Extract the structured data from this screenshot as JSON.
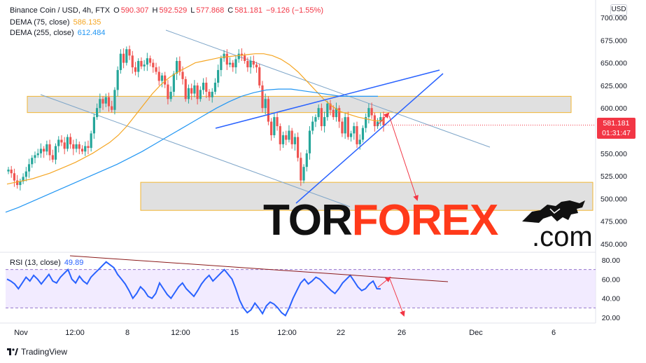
{
  "legend": {
    "symbol": "Binance Coin / USD, 4h, FTX",
    "open_label": "O",
    "open": "590.307",
    "high_label": "H",
    "high": "592.529",
    "low_label": "L",
    "low": "577.868",
    "close_label": "C",
    "close": "581.181",
    "change": "−9.126 (−1.55%)",
    "dema75_label": "DEMA (75, close)",
    "dema75_value": "586.135",
    "dema255_label": "DEMA (255, close)",
    "dema255_value": "612.484",
    "rsi_label": "RSI (13, close)",
    "rsi_value": "49.89"
  },
  "currency": "USD",
  "price_tag": {
    "price": "581.181",
    "countdown": "01:31:47"
  },
  "branding": {
    "tv": "TradingView",
    "wm_part1": "TOR",
    "wm_part2": "FOREX",
    "wm_dot": ".com"
  },
  "colors": {
    "up": "#26a69a",
    "down": "#ef5350",
    "dema75": "#f5a623",
    "dema255": "#2196f3",
    "rsi": "#2962ff",
    "trend": "#2962ff",
    "arrow": "#f23645",
    "text_down": "#f23645",
    "text_up": "#089981"
  },
  "chart_data": [
    {
      "type": "candlestick",
      "title": "Binance Coin / USD, 4h, FTX",
      "ylabel": "USD",
      "ylim": [
        437,
        706
      ],
      "y_ticks": [
        450,
        475,
        500,
        525,
        550,
        575,
        600,
        625,
        650,
        675,
        700
      ],
      "x_ticks": [
        "Nov",
        "12:00",
        "8",
        "12:00",
        "15",
        "12:00",
        "22",
        "26",
        "Dec",
        "6"
      ],
      "close": [
        532,
        528,
        520,
        515,
        519,
        524,
        530,
        538,
        545,
        548,
        550,
        555,
        552,
        560,
        548,
        543,
        558,
        565,
        562,
        555,
        568,
        560,
        555,
        560,
        555,
        552,
        558,
        556,
        572,
        590,
        600,
        610,
        605,
        612,
        602,
        598,
        620,
        642,
        660,
        650,
        665,
        658,
        645,
        640,
        652,
        646,
        648,
        655,
        650,
        645,
        640,
        630,
        636,
        626,
        610,
        618,
        638,
        652,
        640,
        632,
        610,
        622,
        616,
        625,
        610,
        620,
        628,
        618,
        612,
        618,
        628,
        642,
        655,
        660,
        648,
        650,
        645,
        654,
        660,
        658,
        652,
        645,
        652,
        648,
        645,
        625,
        600,
        610,
        585,
        570,
        590,
        580,
        560,
        570,
        565,
        575,
        560,
        568,
        545,
        520,
        535,
        550,
        575,
        585,
        590,
        600,
        580,
        590,
        605,
        598,
        590,
        600,
        585,
        572,
        590,
        568,
        572,
        580,
        560,
        565,
        578,
        590,
        600,
        592,
        580,
        585,
        590,
        581
      ],
      "series": [
        {
          "name": "DEMA (75, close)",
          "last": 586.135,
          "values": [
            516,
            518,
            520,
            522,
            525,
            528,
            532,
            536,
            540,
            545,
            550,
            556,
            562,
            570,
            580,
            592,
            604,
            616,
            626,
            634,
            640,
            645,
            650,
            652,
            654,
            656,
            657,
            658,
            659,
            660,
            660,
            658,
            654,
            648,
            640,
            630,
            620,
            610,
            602,
            596,
            593,
            590,
            588,
            586,
            586
          ]
        },
        {
          "name": "DEMA (255, close)",
          "last": 612.484,
          "values": [
            485,
            490,
            496,
            502,
            508,
            514,
            520,
            526,
            532,
            538,
            545,
            552,
            560,
            568,
            576,
            584,
            592,
            600,
            607,
            613,
            617,
            620,
            621,
            621,
            619,
            617,
            615,
            613,
            613,
            613,
            613
          ]
        },
        {
          "name": "RSI (13, close)",
          "last": 49.89,
          "ylim": [
            13,
            86
          ],
          "y_ticks": [
            20,
            40,
            60,
            80
          ],
          "band": [
            30,
            70
          ],
          "values": [
            60,
            58,
            55,
            50,
            56,
            62,
            58,
            64,
            60,
            55,
            60,
            65,
            58,
            56,
            62,
            66,
            70,
            60,
            56,
            63,
            58,
            55,
            62,
            66,
            70,
            74,
            78,
            75,
            72,
            65,
            60,
            55,
            48,
            40,
            45,
            52,
            48,
            42,
            40,
            45,
            56,
            50,
            44,
            40,
            46,
            52,
            56,
            50,
            46,
            42,
            48,
            55,
            60,
            64,
            58,
            62,
            66,
            70,
            65,
            60,
            50,
            38,
            30,
            25,
            28,
            35,
            30,
            24,
            32,
            36,
            34,
            30,
            25,
            22,
            30,
            40,
            48,
            56,
            60,
            55,
            58,
            62,
            60,
            56,
            52,
            48,
            45,
            50,
            56,
            60,
            64,
            58,
            52,
            48,
            50,
            55,
            58,
            50,
            49.89
          ]
        }
      ]
    }
  ]
}
